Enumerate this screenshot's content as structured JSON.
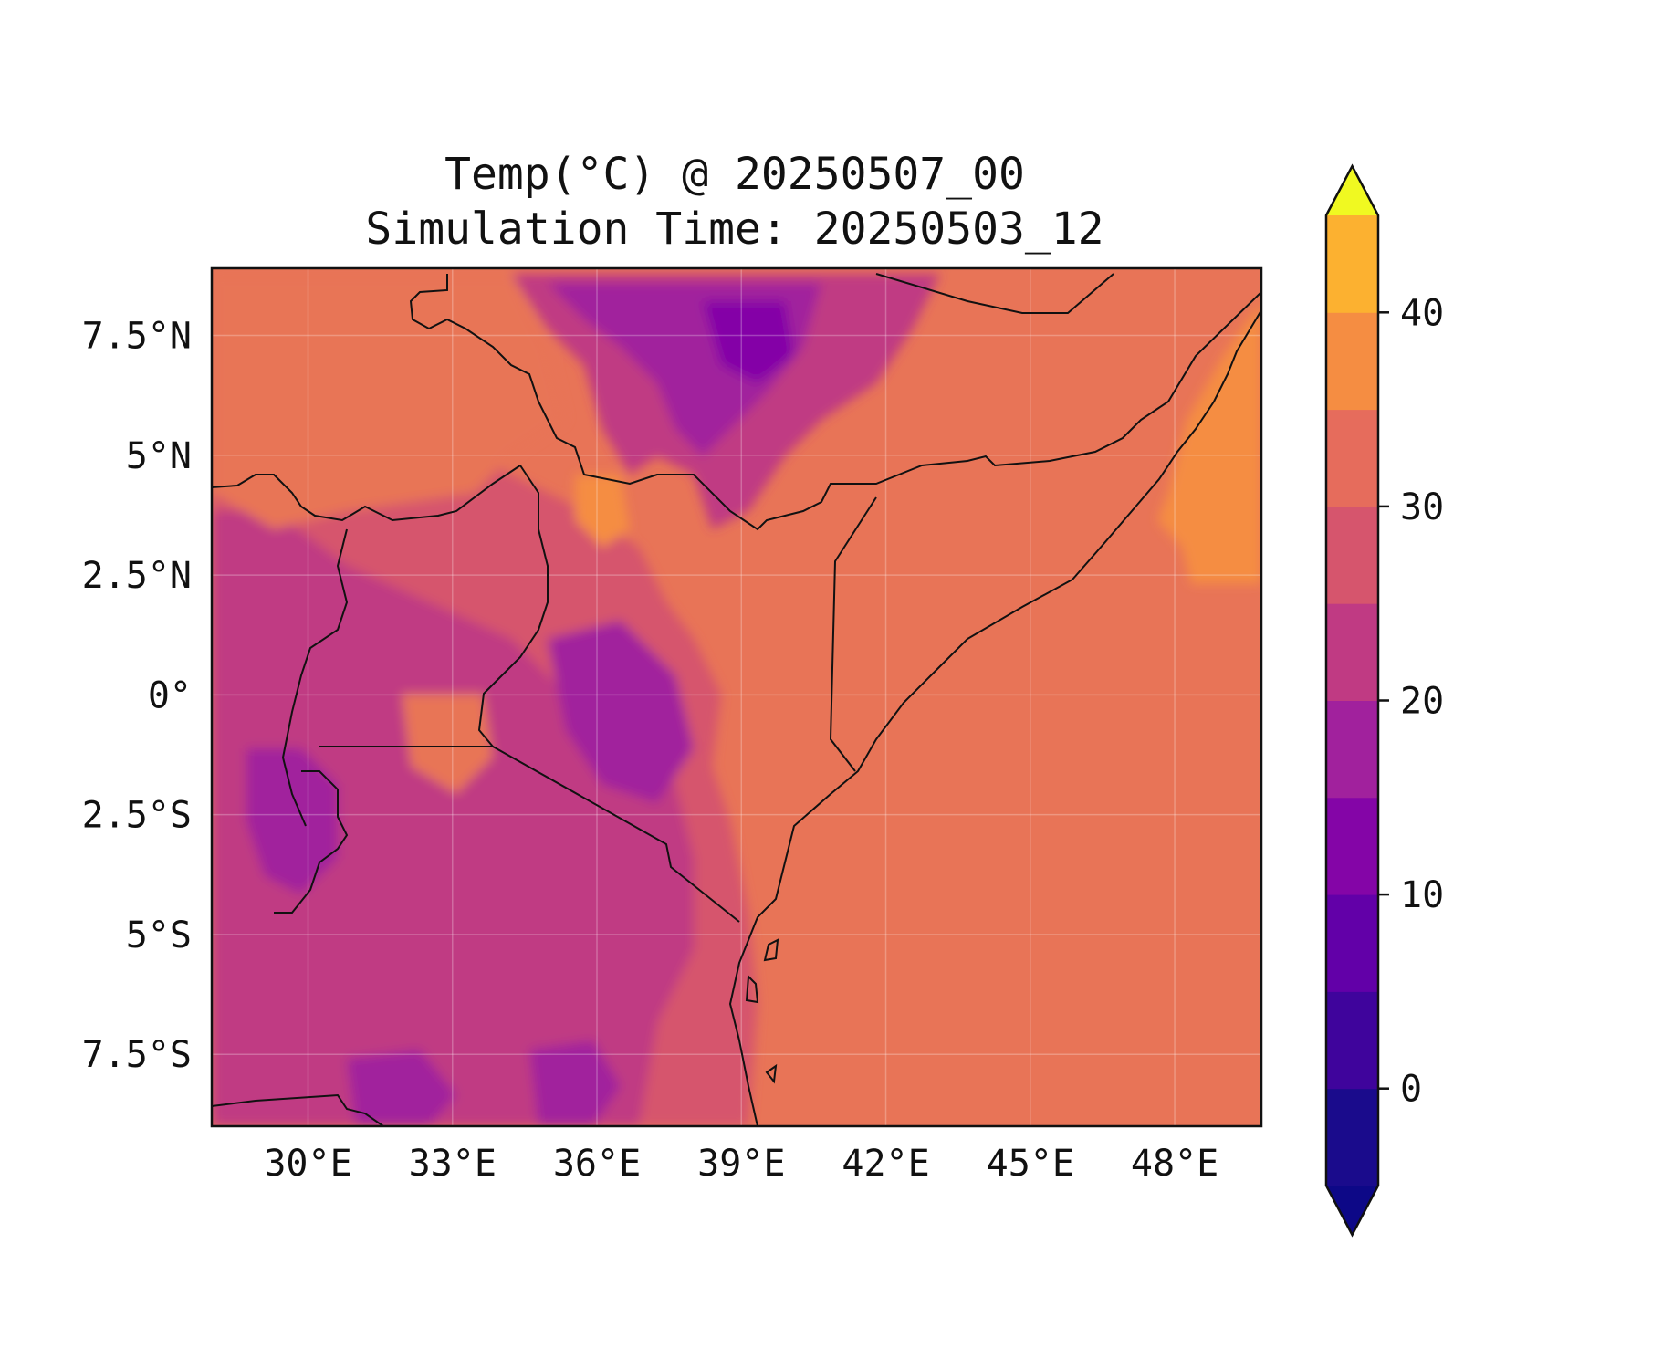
{
  "figure": {
    "title_line1": "Temp(°C) @ 20250507_00",
    "title_line2": "Simulation Time: 20250503_12"
  },
  "map": {
    "type": "filled-contour-map",
    "variable": "Temp(°C)",
    "lon_range": [
      28.0,
      49.8
    ],
    "lat_range": [
      -9.0,
      8.9
    ],
    "x_ticks": [
      "30°E",
      "33°E",
      "36°E",
      "39°E",
      "42°E",
      "45°E",
      "48°E"
    ],
    "x_tick_values": [
      30,
      33,
      36,
      39,
      42,
      45,
      48
    ],
    "y_ticks": [
      "7.5°N",
      "5°N",
      "2.5°N",
      "0°",
      "2.5°S",
      "5°S",
      "7.5°S"
    ],
    "y_tick_values": [
      7.5,
      5,
      2.5,
      0,
      -2.5,
      -5,
      -7.5
    ],
    "gridlines": true,
    "features": [
      "country borders",
      "coastline"
    ]
  },
  "colorbar": {
    "levels": [
      -5,
      0,
      5,
      10,
      15,
      20,
      25,
      30,
      35,
      40,
      45
    ],
    "colors": [
      "#1a0b8c",
      "#3f049c",
      "#6200a8",
      "#8405a7",
      "#a1219d",
      "#c03a83",
      "#d6556d",
      "#e66c5c",
      "#f58d42",
      "#fcb130",
      "#f0df23"
    ],
    "under_color": "#0d0887",
    "over_color": "#f0f921",
    "extend": "both",
    "tick_labels": [
      "0",
      "10",
      "20",
      "30",
      "40"
    ],
    "tick_values": [
      0,
      10,
      20,
      30,
      40
    ]
  }
}
